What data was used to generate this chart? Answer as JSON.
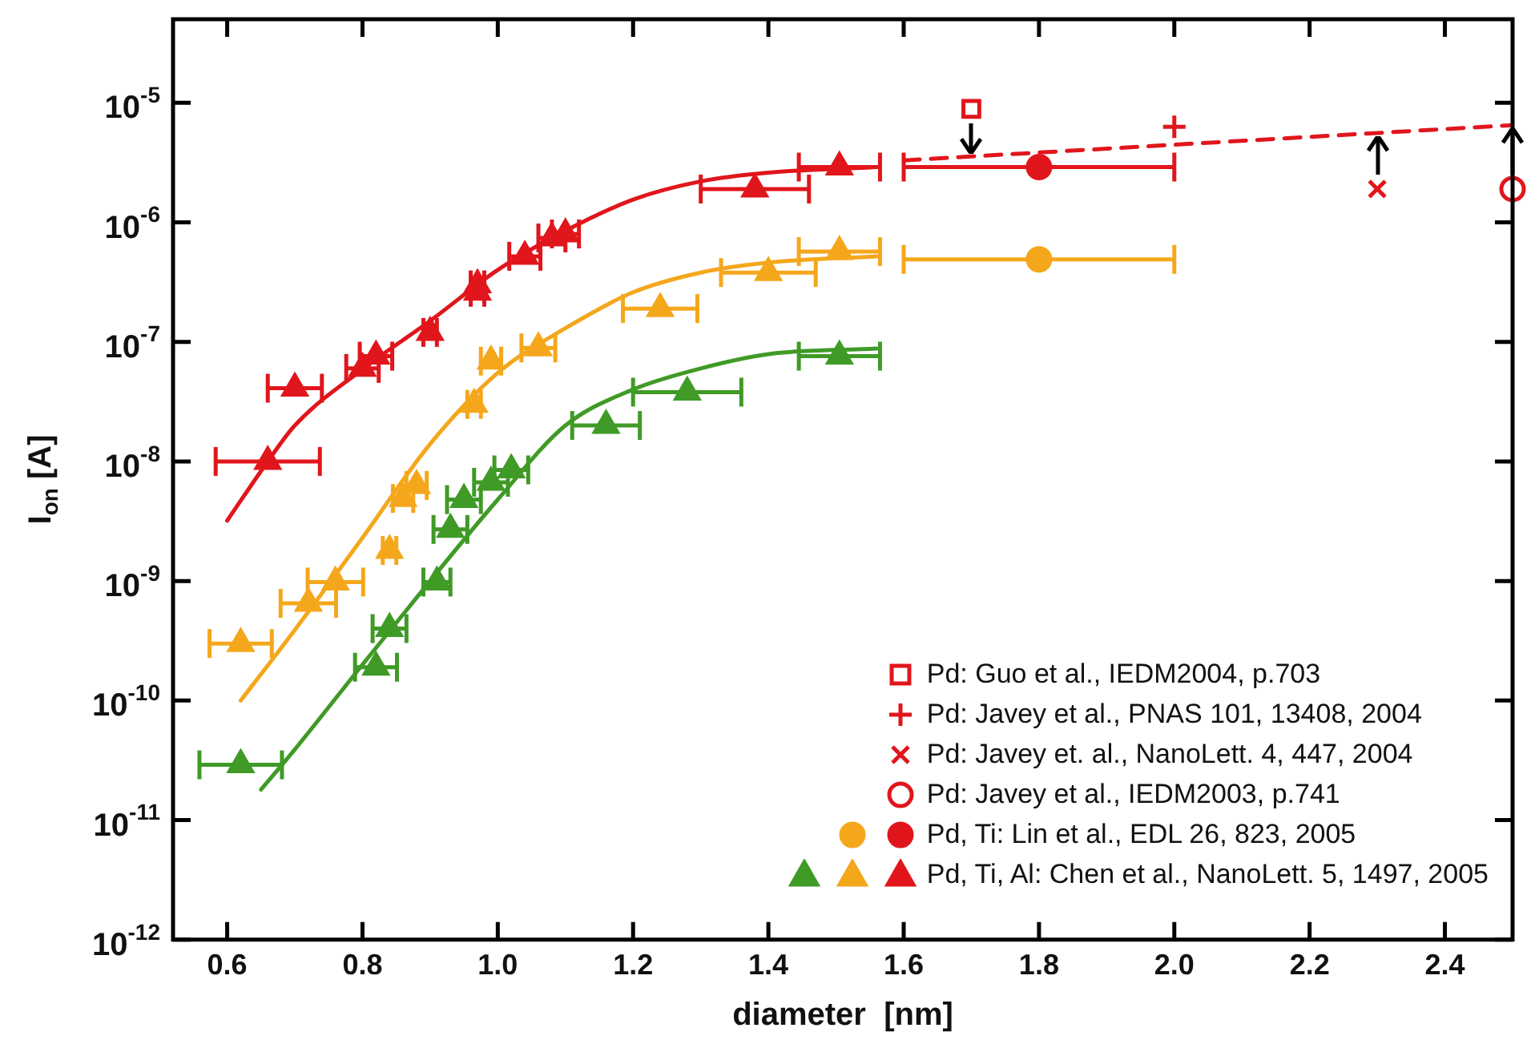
{
  "chart_data": {
    "type": "scatter",
    "xlabel": "diameter  [nm]",
    "ylabel": "I$_{on}$ [A]",
    "log": "y",
    "grid": false,
    "legend": "bottom right",
    "xlim": [
      0.52,
      2.5
    ],
    "xticks": [
      {
        "value": 0.6,
        "label": "0.6"
      },
      {
        "value": 0.8,
        "label": "0.8"
      },
      {
        "value": 1.0,
        "label": "1.0"
      },
      {
        "value": 1.2,
        "label": "1.2"
      },
      {
        "value": 1.4,
        "label": "1.4"
      },
      {
        "value": 1.6,
        "label": "1.6"
      },
      {
        "value": 1.8,
        "label": "1.8"
      },
      {
        "value": 2.0,
        "label": "2.0"
      },
      {
        "value": 2.2,
        "label": "2.2"
      },
      {
        "value": 2.4,
        "label": "2.4"
      }
    ],
    "ylim": [
      1e-12,
      5e-05
    ],
    "yticks": [
      {
        "value": 1e-12,
        "label": "10$^{-12}$"
      },
      {
        "value": 1e-11,
        "label": "10$^{-11}$"
      },
      {
        "value": 1e-10,
        "label": "10$^{-10}$"
      },
      {
        "value": 1e-09,
        "label": "10$^{-9}$"
      },
      {
        "value": 1e-08,
        "label": "10$^{-8}$"
      },
      {
        "value": 1e-07,
        "label": "10$^{-7}$"
      },
      {
        "value": 1e-06,
        "label": "10$^{-6}$"
      },
      {
        "value": 1e-05,
        "label": "10$^{-5}$"
      }
    ],
    "series": [
      {
        "name": "Pd: Guo et al., IEDM2004, p.703",
        "type": "scatter",
        "marker": "square",
        "color": "#e0161c",
        "x": [
          1.7
        ],
        "values": [
          8.9e-06
        ]
      },
      {
        "name": "Pd: Javey et al., PNAS 101, 13408, 2004",
        "type": "scatter",
        "marker": "cross",
        "color": "#e0161c",
        "x": [
          2.0
        ],
        "values": [
          6.3e-06
        ]
      },
      {
        "name": "Pd: Javey et. al., NanoLett. 4, 447, 2004",
        "type": "scatter",
        "marker": "x",
        "color": "#e0161c",
        "x": [
          2.3
        ],
        "values": [
          1.9e-06
        ]
      },
      {
        "name": "Pd: Javey et al., IEDM2003, p.741",
        "type": "scatter",
        "marker": "circle",
        "color": "#e0161c",
        "x": [
          2.5
        ],
        "values": [
          1.9e-06
        ]
      },
      {
        "name": "Pd, Ti: Lin et al., EDL 26, 823, 2005",
        "type": "scatter",
        "marker": "circle",
        "color": "#e0161c",
        "x": [
          1.8
        ],
        "values": [
          2.9e-06
        ],
        "xerrors": [
          0.2
        ]
      },
      {
        "type": "scatter",
        "marker": "circle",
        "color": "#f5a71c",
        "x": [
          1.8
        ],
        "values": [
          4.9e-07
        ],
        "xerrors": [
          0.2
        ]
      },
      {
        "name": "Pd, Ti, Al: Chen et al., NanoLett. 5, 1497, 2005",
        "type": "scatter",
        "marker": "triangle",
        "color": "#e0161c",
        "x": [
          0.66,
          0.7,
          0.8,
          0.82,
          0.9,
          0.97,
          0.97,
          1.04,
          1.08,
          1.1,
          1.38,
          1.505
        ],
        "values": [
          1e-08,
          4.1e-08,
          6e-08,
          7.6e-08,
          1.2e-07,
          2.6e-07,
          3e-07,
          5.2e-07,
          7.4e-07,
          8e-07,
          1.9e-06,
          2.9e-06
        ],
        "xerrors": [
          0.077,
          0.04,
          0.024,
          0.024,
          0.01,
          0.01,
          0.01,
          0.023,
          0.02,
          0.02,
          0.08,
          0.06
        ]
      },
      {
        "type": "scatter",
        "marker": "triangle",
        "color": "#f5a71c",
        "x": [
          0.62,
          0.72,
          0.76,
          0.84,
          0.86,
          0.88,
          0.965,
          0.99,
          1.06,
          1.24,
          1.4,
          1.505
        ],
        "values": [
          3e-10,
          6.5e-10,
          9.8e-10,
          1.8e-09,
          4.9e-09,
          6.3e-09,
          3e-08,
          6.9e-08,
          8.9e-08,
          1.9e-07,
          3.8e-07,
          5.7e-07
        ],
        "xerrors": [
          0.046,
          0.041,
          0.041,
          0.01,
          0.015,
          0.015,
          0.01,
          0.015,
          0.025,
          0.055,
          0.07,
          0.06
        ]
      },
      {
        "type": "scatter",
        "marker": "triangle",
        "color": "#3f9a26",
        "x": [
          0.62,
          0.82,
          0.84,
          0.91,
          0.93,
          0.95,
          0.99,
          1.02,
          1.16,
          1.28,
          1.505
        ],
        "values": [
          2.9e-11,
          1.9e-10,
          4e-10,
          9.8e-10,
          2.7e-09,
          4.8e-09,
          6.7e-09,
          8.5e-09,
          2e-08,
          3.8e-08,
          7.6e-08
        ],
        "xerrors": [
          0.061,
          0.031,
          0.025,
          0.02,
          0.025,
          0.025,
          0.025,
          0.025,
          0.05,
          0.08,
          0.06
        ]
      },
      {
        "type": "line",
        "marker": "none",
        "color": "#e0161c",
        "x": [
          0.6,
          0.66,
          0.7,
          0.8,
          0.9,
          1.0,
          1.1,
          1.2,
          1.3,
          1.4,
          1.56
        ],
        "values": [
          3.2e-09,
          1e-08,
          2e-08,
          5.9e-08,
          1.5e-07,
          4e-07,
          8.5e-07,
          1.55e-06,
          2.2e-06,
          2.6e-06,
          2.9e-06
        ]
      },
      {
        "type": "line",
        "marker": "none",
        "color": "#f5a71c",
        "x": [
          0.62,
          0.7,
          0.8,
          0.9,
          1.0,
          1.1,
          1.2,
          1.3,
          1.4,
          1.56
        ],
        "values": [
          1e-10,
          3.9e-10,
          2.3e-09,
          1.4e-08,
          5.5e-08,
          1.3e-07,
          2.6e-07,
          3.8e-07,
          4.6e-07,
          5.2e-07
        ]
      },
      {
        "type": "line",
        "marker": "none",
        "color": "#3f9a26",
        "x": [
          0.65,
          0.7,
          0.8,
          0.9,
          1.0,
          1.1,
          1.2,
          1.3,
          1.4,
          1.56
        ],
        "values": [
          1.8e-11,
          3.9e-11,
          2e-10,
          1e-09,
          4.8e-09,
          2e-08,
          4e-08,
          6e-08,
          7.9e-08,
          8.8e-08
        ]
      },
      {
        "type": "line",
        "marker": "none",
        "line_style": "dashed",
        "color": "#e0161c",
        "x": [
          1.6,
          2.5
        ],
        "values": [
          3.3e-06,
          6.5e-06
        ]
      }
    ]
  }
}
